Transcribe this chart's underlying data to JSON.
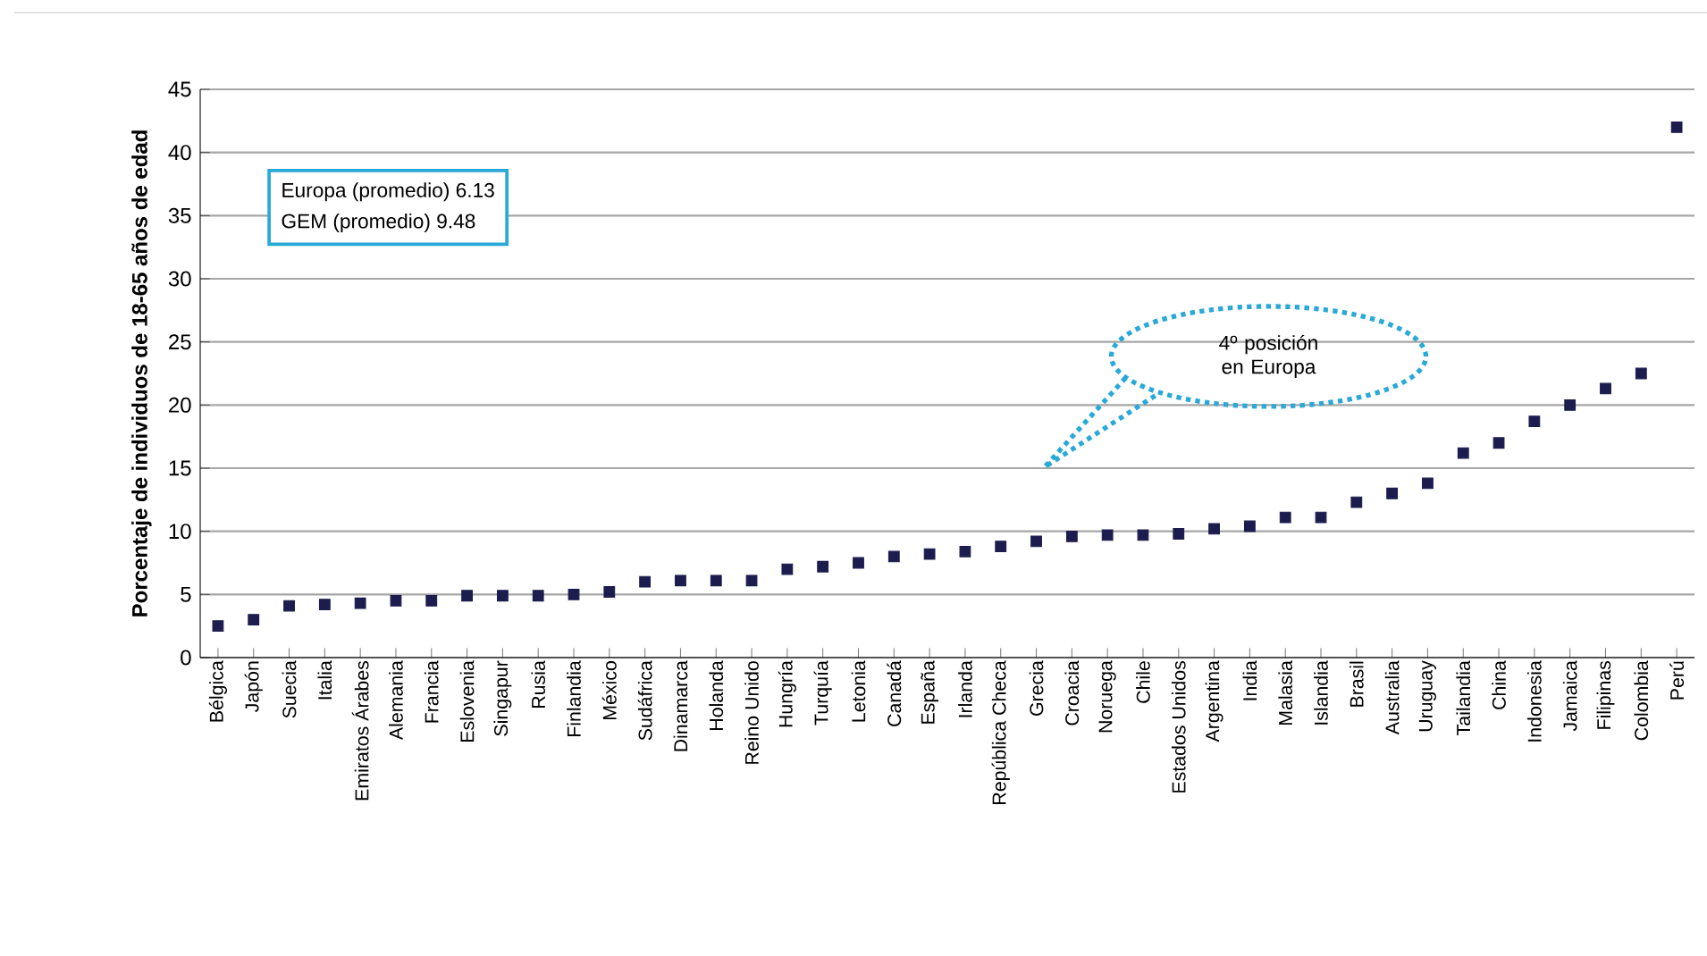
{
  "chart_data": {
    "type": "scatter",
    "ylabel": "Porcentaje de individuos de 18-65 años de edad",
    "categories": [
      "Bélgica",
      "Japón",
      "Suecia",
      "Italia",
      "Emiratos Árabes",
      "Alemania",
      "Francia",
      "Eslovenia",
      "Singapur",
      "Rusia",
      "Finlandia",
      "México",
      "Sudáfrica",
      "Dinamarca",
      "Holanda",
      "Reino Unido",
      "Hungría",
      "Turquía",
      "Letonia",
      "Canadá",
      "España",
      "Irlanda",
      "República Checa",
      "Grecia",
      "Croacia",
      "Noruega",
      "Chile",
      "Estados Unidos",
      "Argentina",
      "India",
      "Malasia",
      "Islandia",
      "Brasil",
      "Australia",
      "Uruguay",
      "Tailandia",
      "China",
      "Indonesia",
      "Jamaica",
      "Filipinas",
      "Colombia",
      "Perú"
    ],
    "values": [
      2.5,
      3.0,
      4.1,
      4.2,
      4.3,
      4.5,
      4.5,
      4.9,
      4.9,
      4.9,
      5.0,
      5.2,
      6.0,
      6.1,
      6.1,
      6.1,
      7.0,
      7.2,
      7.5,
      8.0,
      8.2,
      8.4,
      8.8,
      9.2,
      9.6,
      9.7,
      9.7,
      9.8,
      10.2,
      10.4,
      11.1,
      11.1,
      12.3,
      13.0,
      13.8,
      16.2,
      17.0,
      18.7,
      20.0,
      21.3,
      22.5,
      42.0
    ],
    "color": "#1c1c4e",
    "marker": "square",
    "ylim": [
      0,
      45
    ],
    "yticks": [
      0,
      5,
      10,
      15,
      20,
      25,
      30,
      35,
      40,
      45
    ],
    "grid": "y",
    "annotations": [
      "Europa (promedio) 6.13",
      "GEM (promedio) 9.48",
      "4º posición en Europa"
    ]
  }
}
